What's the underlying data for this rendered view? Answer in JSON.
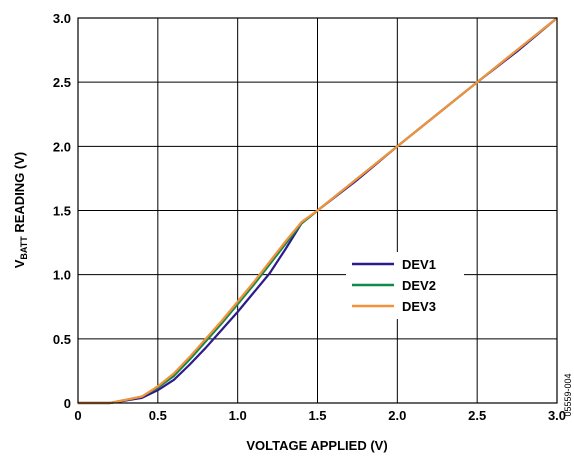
{
  "chart_data": {
    "type": "line",
    "title": "",
    "xlabel": "VOLTAGE APPLIED (V)",
    "ylabel": {
      "prefix": "V",
      "subscript": "BATT",
      "suffix": " READING (V)"
    },
    "xlim": [
      0,
      3.0
    ],
    "ylim": [
      0,
      3.0
    ],
    "xticks": [
      "0",
      "0.5",
      "1.0",
      "1.5",
      "2.0",
      "2.5",
      "3.0"
    ],
    "yticks": [
      "0",
      "0.5",
      "1.0",
      "1.5",
      "2.0",
      "2.5",
      "3.0"
    ],
    "grid": true,
    "legend_position": "center-right",
    "series": [
      {
        "name": "DEV1",
        "color": "#2e1a8c",
        "x": [
          0,
          0.2,
          0.4,
          0.5,
          0.6,
          0.7,
          0.8,
          0.9,
          1.0,
          1.1,
          1.2,
          1.3,
          1.4,
          1.5,
          1.75,
          2.0,
          2.25,
          2.5,
          2.75,
          3.0
        ],
        "y": [
          0,
          0,
          0.04,
          0.1,
          0.18,
          0.3,
          0.43,
          0.57,
          0.71,
          0.86,
          1.01,
          1.2,
          1.4,
          1.5,
          1.74,
          2.0,
          2.25,
          2.5,
          2.74,
          3.0
        ]
      },
      {
        "name": "DEV2",
        "color": "#0f8a4a",
        "x": [
          0,
          0.2,
          0.4,
          0.5,
          0.6,
          0.7,
          0.8,
          0.9,
          1.0,
          1.1,
          1.2,
          1.3,
          1.4,
          1.5,
          1.75,
          2.0,
          2.25,
          2.5,
          2.75,
          3.0
        ],
        "y": [
          0,
          0,
          0.05,
          0.12,
          0.21,
          0.34,
          0.48,
          0.62,
          0.77,
          0.92,
          1.08,
          1.24,
          1.4,
          1.5,
          1.75,
          2.0,
          2.25,
          2.5,
          2.75,
          3.0
        ]
      },
      {
        "name": "DEV3",
        "color": "#f5913a",
        "x": [
          0,
          0.2,
          0.4,
          0.5,
          0.6,
          0.7,
          0.8,
          0.9,
          1.0,
          1.1,
          1.2,
          1.3,
          1.4,
          1.5,
          1.75,
          2.0,
          2.25,
          2.5,
          2.75,
          3.0
        ],
        "y": [
          0,
          0,
          0.05,
          0.13,
          0.23,
          0.36,
          0.5,
          0.64,
          0.79,
          0.94,
          1.1,
          1.26,
          1.41,
          1.5,
          1.75,
          2.0,
          2.25,
          2.5,
          2.75,
          3.0
        ]
      }
    ]
  },
  "figure_id": "05559-004"
}
